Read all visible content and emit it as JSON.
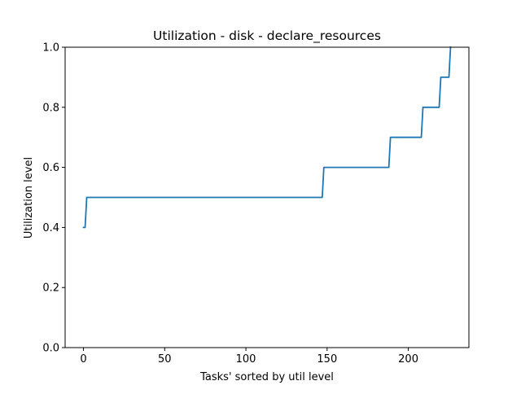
{
  "chart_data": {
    "type": "line",
    "title": "Utilization - disk - declare_resources",
    "xlabel": "Tasks' sorted by util level",
    "ylabel": "Utilization level",
    "xlim": [
      -11.3,
      237.3
    ],
    "ylim": [
      0.0,
      1.0
    ],
    "xticks": [
      0,
      50,
      100,
      150,
      200
    ],
    "yticks": [
      0.0,
      0.2,
      0.4,
      0.6,
      0.8,
      1.0
    ],
    "xtick_labels": [
      "0",
      "50",
      "100",
      "150",
      "200"
    ],
    "ytick_labels": [
      "0.0",
      "0.2",
      "0.4",
      "0.6",
      "0.8",
      "1.0"
    ],
    "grid": false,
    "legend": "none",
    "series": [
      {
        "color": "#1f77b4",
        "x": [
          0,
          1,
          2,
          147,
          148,
          188,
          189,
          208,
          209,
          219,
          220,
          225,
          226
        ],
        "y": [
          0.4,
          0.4,
          0.5,
          0.5,
          0.6,
          0.6,
          0.7,
          0.7,
          0.8,
          0.8,
          0.9,
          0.9,
          1.0
        ]
      }
    ]
  }
}
